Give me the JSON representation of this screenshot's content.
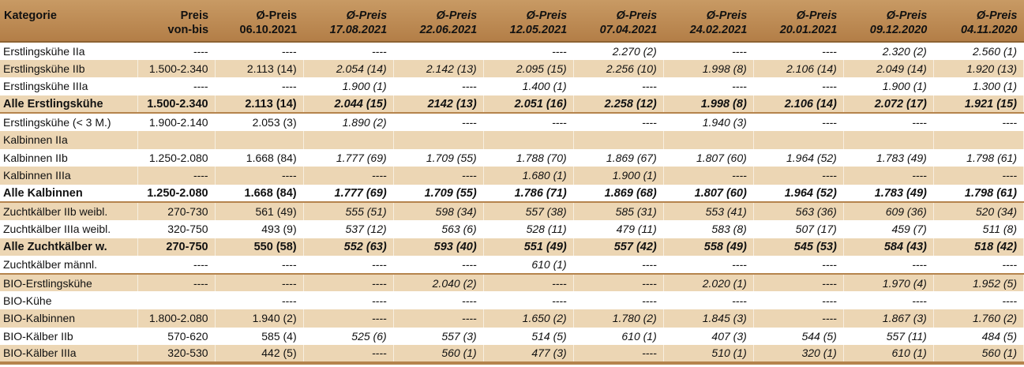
{
  "header": {
    "category": "Kategorie",
    "range_line1": "Preis",
    "range_line2": "von-bis",
    "avg_label": "Ø-Preis",
    "dates": [
      "06.10.2021",
      "17.08.2021",
      "22.06.2021",
      "12.05.2021",
      "07.04.2021",
      "24.02.2021",
      "20.01.2021",
      "09.12.2020",
      "04.11.2020"
    ]
  },
  "rows": [
    {
      "category": "Erstlingskühe IIa",
      "range": "----",
      "values": [
        "----",
        "----",
        "",
        "----",
        "2.270 (2)",
        "----",
        "----",
        "2.320 (2)",
        "2.560 (1)"
      ]
    },
    {
      "category": "Erstlingskühe IIb",
      "range": "1.500-2.340",
      "values": [
        "2.113 (14)",
        "2.054 (14)",
        "2.142 (13)",
        "2.095 (15)",
        "2.256 (10)",
        "1.998 (8)",
        "2.106 (14)",
        "2.049 (14)",
        "1.920 (13)"
      ]
    },
    {
      "category": "Erstlingskühe IIIa",
      "range": "----",
      "values": [
        "----",
        "1.900 (1)",
        "----",
        "1.400 (1)",
        "----",
        "----",
        "----",
        "1.900 (1)",
        "1.300 (1)"
      ]
    },
    {
      "category": "Alle Erstlingskühe",
      "range": "1.500-2.340",
      "values": [
        "2.113 (14)",
        "2.044 (15)",
        "2142 (13)",
        "2.051 (16)",
        "2.258 (12)",
        "1.998 (8)",
        "2.106 (14)",
        "2.072 (17)",
        "1.921 (15)"
      ]
    },
    {
      "category": "Erstlingskühe (< 3 M.)",
      "range": "1.900-2.140",
      "values": [
        "2.053 (3)",
        "1.890 (2)",
        "----",
        "----",
        "----",
        "1.940 (3)",
        "----",
        "----",
        "----"
      ]
    },
    {
      "category": "Kalbinnen IIa",
      "range": "",
      "values": [
        "",
        "",
        "",
        "",
        "",
        "",
        "",
        "",
        ""
      ]
    },
    {
      "category": "Kalbinnen IIb",
      "range": "1.250-2.080",
      "values": [
        "1.668 (84)",
        "1.777 (69)",
        "1.709 (55)",
        "1.788 (70)",
        "1.869 (67)",
        "1.807 (60)",
        "1.964 (52)",
        "1.783 (49)",
        "1.798 (61)"
      ]
    },
    {
      "category": "Kalbinnen IIIa",
      "range": "----",
      "values": [
        "----",
        "----",
        "----",
        "1.680 (1)",
        "1.900 (1)",
        "----",
        "----",
        "----",
        "----"
      ]
    },
    {
      "category": "Alle Kalbinnen",
      "range": "1.250-2.080",
      "values": [
        "1.668 (84)",
        "1.777 (69)",
        "1.709 (55)",
        "1.786 (71)",
        "1.869 (68)",
        "1.807 (60)",
        "1.964 (52)",
        "1.783 (49)",
        "1.798 (61)"
      ]
    },
    {
      "category": "Zuchtkälber IIb weibl.",
      "range": "270-730",
      "values": [
        "561 (49)",
        "555 (51)",
        "598 (34)",
        "557 (38)",
        "585 (31)",
        "553 (41)",
        "563 (36)",
        "609 (36)",
        "520 (34)"
      ]
    },
    {
      "category": "Zuchtkälber IIIa weibl.",
      "range": "320-750",
      "values": [
        "493 (9)",
        "537 (12)",
        "563 (6)",
        "528 (11)",
        "479 (11)",
        "583 (8)",
        "507 (17)",
        "459 (7)",
        "511 (8)"
      ]
    },
    {
      "category": "Alle Zuchtkälber w.",
      "range": "270-750",
      "values": [
        "550 (58)",
        "552 (63)",
        "593 (40)",
        "551 (49)",
        "557 (42)",
        "558 (49)",
        "545 (53)",
        "584 (43)",
        "518 (42)"
      ]
    },
    {
      "category": "Zuchtkälber männl.",
      "range": "----",
      "values": [
        "----",
        "----",
        "----",
        "610 (1)",
        "----",
        "----",
        "----",
        "----",
        "----"
      ]
    },
    {
      "category": "BIO-Erstlingskühe",
      "range": "----",
      "values": [
        "----",
        "----",
        "2.040 (2)",
        "----",
        "----",
        "2.020 (1)",
        "----",
        "1.970 (4)",
        "1.952 (5)"
      ]
    },
    {
      "category": "BIO-Kühe",
      "range": "",
      "values": [
        "----",
        "----",
        "----",
        "----",
        "----",
        "----",
        "----",
        "----",
        "----"
      ]
    },
    {
      "category": "BIO-Kalbinnen",
      "range": "1.800-2.080",
      "values": [
        "1.940 (2)",
        "----",
        "----",
        "1.650 (2)",
        "1.780 (2)",
        "1.845 (3)",
        "----",
        "1.867 (3)",
        "1.760 (2)"
      ]
    },
    {
      "category": "BIO-Kälber IIb",
      "range": "570-620",
      "values": [
        "585 (4)",
        "525 (6)",
        "557 (3)",
        "514 (5)",
        "610 (1)",
        "407 (3)",
        "544 (5)",
        "557 (11)",
        "484 (5)"
      ]
    },
    {
      "category": "BIO-Kälber IIIa",
      "range": "320-530",
      "values": [
        "442 (5)",
        "----",
        "560 (1)",
        "477 (3)",
        "----",
        "510 (1)",
        "320 (1)",
        "610 (1)",
        "560 (1)"
      ]
    }
  ]
}
